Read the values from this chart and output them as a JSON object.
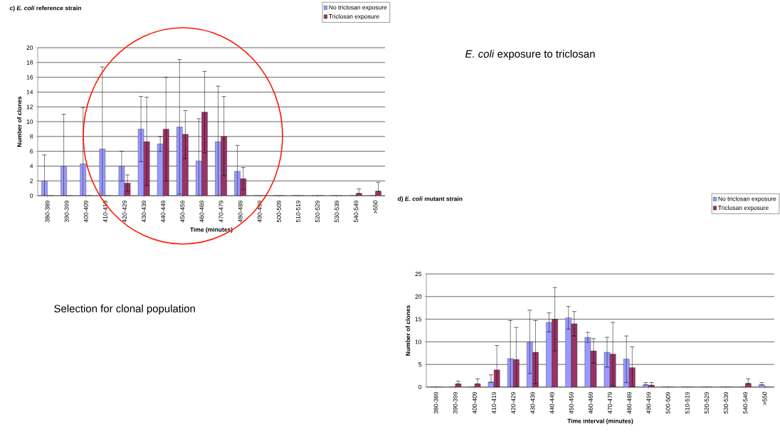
{
  "chart_data": [
    {
      "type": "bar",
      "title": "c) *E. coli* reference strain",
      "xlabel": "Time (minutes)",
      "ylabel": "Number of clones",
      "categories": [
        "380-389",
        "390-399",
        "400-409",
        "410-419",
        "420-429",
        "430-439",
        "440-449",
        "450-459",
        "460-469",
        "470-479",
        "480-489",
        "490-499",
        "500-509",
        "510-519",
        "520-529",
        "530-539",
        "540-549",
        ">550"
      ],
      "series": [
        {
          "name": "No triclosan exposure",
          "color": "#9999ff",
          "values": [
            2,
            4,
            4.3,
            6.3,
            4,
            9,
            7,
            9.3,
            4.7,
            7.3,
            3.3,
            0,
            0,
            0,
            0,
            0,
            0,
            0
          ],
          "errors": [
            [
              0,
              5.5
            ],
            [
              0,
              11
            ],
            [
              0,
              11.9
            ],
            [
              0,
              17.4
            ],
            [
              2,
              6
            ],
            [
              4.6,
              13.4
            ],
            [
              6,
              8
            ],
            [
              0.2,
              18.4
            ],
            [
              0,
              10.4
            ],
            [
              0,
              14.8
            ],
            [
              0,
              6.8
            ],
            null,
            null,
            null,
            null,
            null,
            null,
            null
          ]
        },
        {
          "name": "Triclosan exposure",
          "color": "#993366",
          "values": [
            0,
            0,
            0,
            0,
            1.7,
            7.3,
            9,
            8.3,
            11.3,
            8,
            2.3,
            0,
            0,
            0,
            0,
            0,
            0.3,
            0.6
          ],
          "errors": [
            null,
            null,
            null,
            null,
            [
              0.6,
              2.8
            ],
            [
              1.4,
              13.3
            ],
            [
              2,
              16
            ],
            [
              5,
              11.5
            ],
            [
              5.8,
              16.8
            ],
            [
              2.7,
              13.4
            ],
            [
              0.8,
              3.8
            ],
            null,
            null,
            null,
            null,
            null,
            [
              0.3,
              0.9
            ],
            [
              0.6,
              1.8
            ]
          ]
        }
      ],
      "ylim": [
        0,
        20
      ],
      "yticks": [
        0,
        2,
        4,
        6,
        8,
        10,
        12,
        14,
        16,
        18,
        20
      ],
      "grid": "y",
      "legend": "top right"
    },
    {
      "type": "bar",
      "title": "d) *E. coli* mutant strain",
      "xlabel": "Time interval (minutes)",
      "ylabel": "Number of clones",
      "categories": [
        "380-389",
        "390-399",
        "400-409",
        "410-419",
        "420-429",
        "430-439",
        "440-449",
        "450-459",
        "460-469",
        "470-479",
        "480-489",
        "490-499",
        "500-509",
        "510-519",
        "520-529",
        "530-539",
        "540-549",
        ">550"
      ],
      "series": [
        {
          "name": "No triclosan exposure",
          "color": "#9999ff",
          "values": [
            0,
            0,
            0,
            1.1,
            6.3,
            10,
            14.3,
            15.3,
            11,
            7.7,
            6.2,
            0.5,
            0,
            0,
            0,
            0,
            0,
            0.5
          ],
          "errors": [
            null,
            null,
            null,
            [
              1.1,
              2.7
            ],
            [
              0,
              14.7
            ],
            [
              3,
              17
            ],
            [
              12.2,
              16.4
            ],
            [
              12.8,
              17.8
            ],
            [
              9.9,
              12.1
            ],
            [
              4.4,
              11
            ],
            [
              1,
              11.3
            ],
            [
              0.5,
              1
            ],
            null,
            null,
            null,
            null,
            null,
            [
              0.5,
              1
            ]
          ]
        },
        {
          "name": "Triclosan exposure",
          "color": "#993366",
          "values": [
            0,
            0.7,
            0.7,
            3.8,
            6.1,
            7.7,
            15,
            14,
            8,
            7.3,
            4.3,
            0.4,
            0,
            0,
            0,
            0,
            0.8,
            0
          ],
          "errors": [
            null,
            [
              0.7,
              1.3
            ],
            [
              0.7,
              1.8
            ],
            [
              0,
              9.2
            ],
            [
              0,
              13.2
            ],
            [
              0.7,
              14.7
            ],
            [
              8,
              22
            ],
            [
              11.3,
              16.7
            ],
            [
              5.3,
              10.7
            ],
            [
              0.3,
              14.3
            ],
            [
              0,
              8.9
            ],
            [
              0.4,
              1
            ],
            null,
            null,
            null,
            null,
            [
              0.8,
              1.8
            ],
            null
          ]
        }
      ],
      "ylim": [
        0,
        25
      ],
      "yticks": [
        0,
        5,
        10,
        15,
        20,
        25
      ],
      "grid": "y",
      "legend": "top right"
    },
    {
      "type": "other",
      "title": "*E. coli* exposure to triclosan",
      "annotations": [
        "Selection for clonal population"
      ]
    }
  ]
}
